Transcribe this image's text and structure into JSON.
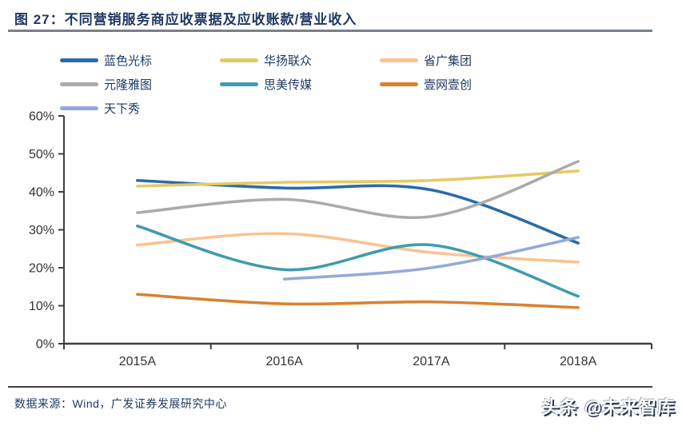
{
  "header": {
    "title": "图 27：不同营销服务商应收票据及应收账款/营业收入"
  },
  "chart_data": {
    "type": "line",
    "smooth": true,
    "grid": false,
    "legend_position": "top",
    "categories": [
      "2015A",
      "2016A",
      "2017A",
      "2018A"
    ],
    "series": [
      {
        "name": "蓝色光标",
        "color": "#2A6BA8",
        "values": [
          43,
          41,
          40.5,
          26.5
        ]
      },
      {
        "name": "华扬联众",
        "color": "#E3CB62",
        "values": [
          41.5,
          42.5,
          43,
          45.5
        ]
      },
      {
        "name": "省广集团",
        "color": "#F8C491",
        "values": [
          26,
          29,
          24,
          21.5
        ]
      },
      {
        "name": "元隆雅图",
        "color": "#ABABAB",
        "values": [
          34.5,
          38,
          33.5,
          48
        ]
      },
      {
        "name": "思美传媒",
        "color": "#3F9CAE",
        "values": [
          31,
          19.5,
          26,
          12.5
        ]
      },
      {
        "name": "壹网壹创",
        "color": "#D9822F",
        "values": [
          13,
          10.5,
          11,
          9.5
        ]
      },
      {
        "name": "天下秀",
        "color": "#93A9D8",
        "values": [
          null,
          17,
          20,
          28
        ]
      }
    ],
    "ylim": [
      0,
      60
    ],
    "y_tick_labels": [
      "0%",
      "10%",
      "20%",
      "30%",
      "40%",
      "50%",
      "60%"
    ],
    "xlabel": "",
    "ylabel": "",
    "axis_color": "#3F3F3F"
  },
  "footer": {
    "source": "数据来源：Wind，广发证券发展研究中心",
    "watermark": "头条 @未来智库"
  }
}
